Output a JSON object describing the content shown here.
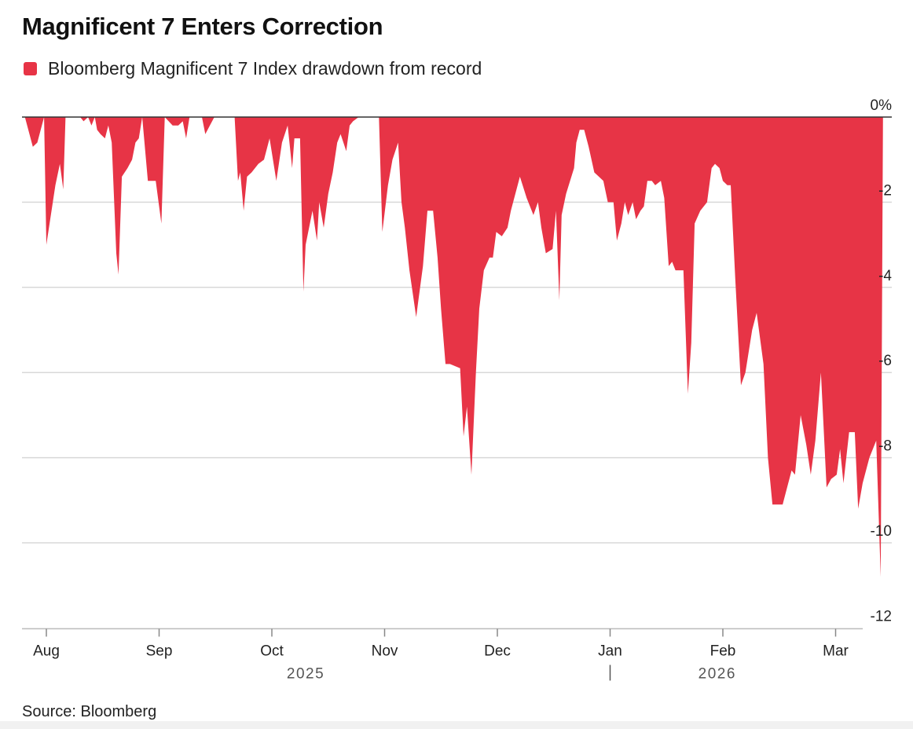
{
  "header": {
    "title": "Magnificent 7 Enters Correction"
  },
  "legend": {
    "label": "Bloomberg Magnificent 7 Index drawdown from record",
    "color": "#e73446"
  },
  "footer": {
    "source": "Source: Bloomberg"
  },
  "chart_data": {
    "type": "area",
    "title": "Magnificent 7 Enters Correction",
    "series": [
      {
        "name": "Bloomberg Magnificent 7 Index drawdown from record",
        "color": "#e73446"
      }
    ],
    "ylim": [
      -12,
      0
    ],
    "yticks": [
      0,
      -2,
      -4,
      -6,
      -8,
      -10,
      -12
    ],
    "ytick_labels": [
      "0%",
      "-2",
      "-4",
      "-6",
      "-8",
      "-10",
      "-12"
    ],
    "x_domain": [
      0,
      7.7
    ],
    "month_ticks": [
      {
        "label": "Aug",
        "x": 0
      },
      {
        "label": "Sep",
        "x": 1
      },
      {
        "label": "Oct",
        "x": 2
      },
      {
        "label": "Nov",
        "x": 3
      },
      {
        "label": "Dec",
        "x": 4
      },
      {
        "label": "Jan",
        "x": 5
      },
      {
        "label": "Feb",
        "x": 6
      },
      {
        "label": "Mar",
        "x": 7
      }
    ],
    "years": [
      {
        "label": "2025",
        "x": 2.3
      },
      {
        "label": "2026",
        "x": 5.95
      }
    ],
    "year_divider_x": 5,
    "points": [
      [
        -0.19,
        0
      ],
      [
        -0.12,
        -0.7
      ],
      [
        -0.08,
        -0.6
      ],
      [
        -0.02,
        0
      ],
      [
        0.0,
        -3.0
      ],
      [
        0.08,
        -1.6
      ],
      [
        0.12,
        -1.1
      ],
      [
        0.15,
        -1.7
      ],
      [
        0.17,
        0
      ],
      [
        0.3,
        0
      ],
      [
        0.33,
        -0.1
      ],
      [
        0.37,
        0
      ],
      [
        0.4,
        -0.2
      ],
      [
        0.43,
        0
      ],
      [
        0.45,
        -0.3
      ],
      [
        0.48,
        -0.4
      ],
      [
        0.52,
        -0.5
      ],
      [
        0.55,
        -0.2
      ],
      [
        0.58,
        -0.6
      ],
      [
        0.62,
        -3.2
      ],
      [
        0.64,
        -3.7
      ],
      [
        0.67,
        -1.4
      ],
      [
        0.72,
        -1.2
      ],
      [
        0.76,
        -1.0
      ],
      [
        0.79,
        -0.6
      ],
      [
        0.82,
        -0.5
      ],
      [
        0.85,
        0
      ],
      [
        0.9,
        -1.5
      ],
      [
        0.97,
        -1.5
      ],
      [
        1.02,
        -2.5
      ],
      [
        1.05,
        0
      ],
      [
        1.12,
        -0.2
      ],
      [
        1.17,
        -0.2
      ],
      [
        1.21,
        -0.1
      ],
      [
        1.24,
        -0.5
      ],
      [
        1.27,
        0
      ],
      [
        1.38,
        0
      ],
      [
        1.41,
        -0.4
      ],
      [
        1.45,
        -0.2
      ],
      [
        1.49,
        0
      ],
      [
        1.67,
        0
      ],
      [
        1.7,
        -1.5
      ],
      [
        1.72,
        -1.3
      ],
      [
        1.75,
        -2.2
      ],
      [
        1.78,
        -1.4
      ],
      [
        1.82,
        -1.3
      ],
      [
        1.88,
        -1.1
      ],
      [
        1.93,
        -1.0
      ],
      [
        1.98,
        -0.5
      ],
      [
        2.04,
        -1.5
      ],
      [
        2.09,
        -0.6
      ],
      [
        2.14,
        -0.2
      ],
      [
        2.18,
        -1.2
      ],
      [
        2.2,
        -0.5
      ],
      [
        2.25,
        -0.5
      ],
      [
        2.28,
        -4.1
      ],
      [
        2.3,
        -3.0
      ],
      [
        2.36,
        -2.2
      ],
      [
        2.4,
        -2.9
      ],
      [
        2.42,
        -2.0
      ],
      [
        2.46,
        -2.6
      ],
      [
        2.5,
        -1.8
      ],
      [
        2.54,
        -1.3
      ],
      [
        2.58,
        -0.6
      ],
      [
        2.61,
        -0.4
      ],
      [
        2.66,
        -0.8
      ],
      [
        2.69,
        -0.2
      ],
      [
        2.72,
        -0.1
      ],
      [
        2.77,
        0
      ],
      [
        2.95,
        0
      ],
      [
        2.98,
        -2.7
      ],
      [
        3.03,
        -1.6
      ],
      [
        3.07,
        -1.0
      ],
      [
        3.12,
        -0.6
      ],
      [
        3.15,
        -2.0
      ],
      [
        3.18,
        -2.6
      ],
      [
        3.22,
        -3.6
      ],
      [
        3.28,
        -4.7
      ],
      [
        3.3,
        -4.3
      ],
      [
        3.34,
        -3.5
      ],
      [
        3.38,
        -2.2
      ],
      [
        3.43,
        -2.2
      ],
      [
        3.47,
        -3.3
      ],
      [
        3.5,
        -4.5
      ],
      [
        3.54,
        -5.8
      ],
      [
        3.58,
        -5.8
      ],
      [
        3.67,
        -5.9
      ],
      [
        3.7,
        -7.5
      ],
      [
        3.73,
        -6.8
      ],
      [
        3.77,
        -8.4
      ],
      [
        3.81,
        -6.0
      ],
      [
        3.84,
        -4.5
      ],
      [
        3.88,
        -3.6
      ],
      [
        3.93,
        -3.3
      ],
      [
        3.96,
        -3.3
      ],
      [
        3.99,
        -2.7
      ],
      [
        4.04,
        -2.8
      ],
      [
        4.09,
        -2.6
      ],
      [
        4.12,
        -2.2
      ],
      [
        4.2,
        -1.4
      ],
      [
        4.26,
        -1.9
      ],
      [
        4.32,
        -2.3
      ],
      [
        4.36,
        -2.0
      ],
      [
        4.39,
        -2.6
      ],
      [
        4.43,
        -3.2
      ],
      [
        4.49,
        -3.1
      ],
      [
        4.52,
        -2.2
      ],
      [
        4.55,
        -4.3
      ],
      [
        4.57,
        -2.3
      ],
      [
        4.61,
        -1.8
      ],
      [
        4.68,
        -1.2
      ],
      [
        4.7,
        -0.6
      ],
      [
        4.73,
        -0.3
      ],
      [
        4.77,
        -0.3
      ],
      [
        4.81,
        -0.7
      ],
      [
        4.86,
        -1.3
      ],
      [
        4.9,
        -1.4
      ],
      [
        4.94,
        -1.5
      ],
      [
        4.98,
        -2.0
      ],
      [
        5.0,
        -2.0
      ],
      [
        5.03,
        -2.0
      ],
      [
        5.06,
        -2.9
      ],
      [
        5.1,
        -2.5
      ],
      [
        5.13,
        -2.0
      ],
      [
        5.16,
        -2.3
      ],
      [
        5.2,
        -2.0
      ],
      [
        5.23,
        -2.4
      ],
      [
        5.27,
        -2.2
      ],
      [
        5.3,
        -2.1
      ],
      [
        5.33,
        -1.5
      ],
      [
        5.37,
        -1.5
      ],
      [
        5.4,
        -1.6
      ],
      [
        5.45,
        -1.5
      ],
      [
        5.48,
        -1.9
      ],
      [
        5.52,
        -3.5
      ],
      [
        5.55,
        -3.4
      ],
      [
        5.58,
        -3.6
      ],
      [
        5.61,
        -3.6
      ],
      [
        5.65,
        -3.6
      ],
      [
        5.69,
        -6.5
      ],
      [
        5.72,
        -5.3
      ],
      [
        5.75,
        -2.5
      ],
      [
        5.8,
        -2.2
      ],
      [
        5.86,
        -2.0
      ],
      [
        5.9,
        -1.2
      ],
      [
        5.93,
        -1.1
      ],
      [
        5.97,
        -1.2
      ],
      [
        6.0,
        -1.5
      ],
      [
        6.04,
        -1.6
      ],
      [
        6.07,
        -1.6
      ],
      [
        6.11,
        -3.8
      ],
      [
        6.16,
        -6.3
      ],
      [
        6.2,
        -6.0
      ],
      [
        6.26,
        -5.0
      ],
      [
        6.3,
        -4.6
      ],
      [
        6.36,
        -5.8
      ],
      [
        6.4,
        -8.0
      ],
      [
        6.44,
        -9.1
      ],
      [
        6.5,
        -9.1
      ],
      [
        6.53,
        -9.1
      ],
      [
        6.57,
        -8.7
      ],
      [
        6.61,
        -8.3
      ],
      [
        6.64,
        -8.4
      ],
      [
        6.69,
        -7.0
      ],
      [
        6.74,
        -7.7
      ],
      [
        6.78,
        -8.4
      ],
      [
        6.82,
        -7.6
      ],
      [
        6.87,
        -6.0
      ],
      [
        6.92,
        -8.7
      ],
      [
        6.96,
        -8.5
      ],
      [
        7.01,
        -8.4
      ],
      [
        7.04,
        -7.8
      ],
      [
        7.07,
        -8.6
      ],
      [
        7.12,
        -7.4
      ],
      [
        7.17,
        -7.4
      ],
      [
        7.2,
        -9.2
      ],
      [
        7.24,
        -8.6
      ],
      [
        7.3,
        -8.0
      ],
      [
        7.36,
        -7.6
      ],
      [
        7.4,
        -10.8
      ],
      [
        7.42,
        0
      ]
    ]
  }
}
